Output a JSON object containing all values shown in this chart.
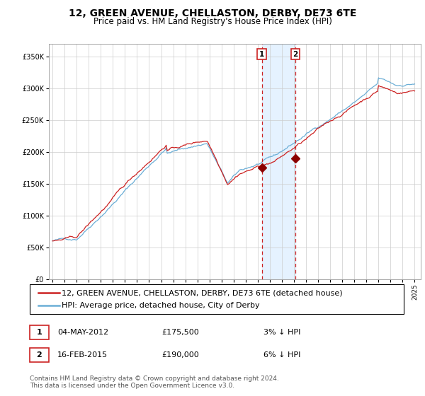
{
  "title": "12, GREEN AVENUE, CHELLASTON, DERBY, DE73 6TE",
  "subtitle": "Price paid vs. HM Land Registry's House Price Index (HPI)",
  "legend_line1": "12, GREEN AVENUE, CHELLASTON, DERBY, DE73 6TE (detached house)",
  "legend_line2": "HPI: Average price, detached house, City of Derby",
  "event1_date": "04-MAY-2012",
  "event1_price": 175500,
  "event1_label": "3% ↓ HPI",
  "event2_date": "16-FEB-2015",
  "event2_price": 190000,
  "event2_label": "6% ↓ HPI",
  "event1_x": 2012.34,
  "event2_x": 2015.12,
  "footnote": "Contains HM Land Registry data © Crown copyright and database right 2024.\nThis data is licensed under the Open Government Licence v3.0.",
  "hpi_color": "#6baed6",
  "price_color": "#cc2222",
  "point_color": "#8b0000",
  "vline_color": "#cc2222",
  "shade_color": "#ddeeff",
  "background_color": "#ffffff",
  "grid_color": "#cccccc",
  "ylim": [
    0,
    370000
  ],
  "xlim": [
    1994.7,
    2025.5
  ],
  "title_fontsize": 10,
  "subtitle_fontsize": 8.5,
  "axis_fontsize": 7,
  "legend_fontsize": 8,
  "footnote_fontsize": 6.5
}
